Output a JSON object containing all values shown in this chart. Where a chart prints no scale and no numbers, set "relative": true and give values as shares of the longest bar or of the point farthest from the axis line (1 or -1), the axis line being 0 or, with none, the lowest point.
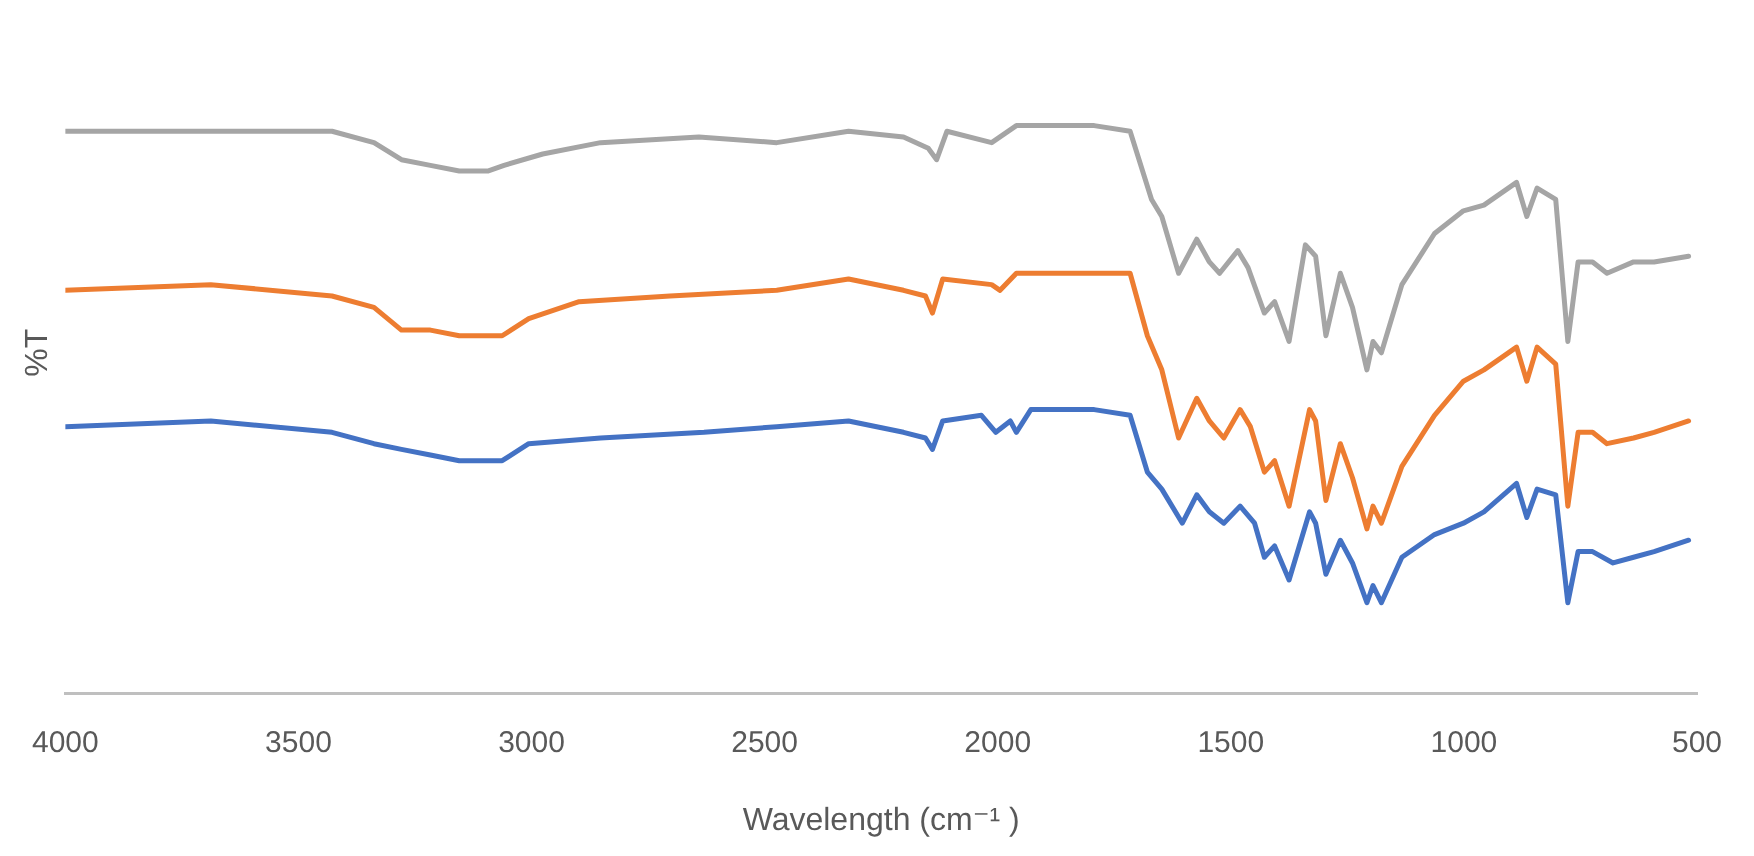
{
  "chart_data": {
    "type": "line",
    "xlabel": "Wavelength (cm⁻¹ )",
    "ylabel": "%T",
    "relative": true,
    "grid": false,
    "legend": false,
    "marker": "none",
    "line_style": "solid",
    "xlim": [
      4000,
      500
    ],
    "xticks": [
      4000,
      3500,
      3000,
      2500,
      2000,
      1500,
      1000,
      500
    ],
    "series": [
      {
        "color": "#a5a5a5",
        "x": [
          4000,
          3613,
          3428,
          3338,
          3279,
          3217,
          3155,
          3094,
          3059,
          2976,
          2852,
          2641,
          2474,
          2320,
          2202,
          2149,
          2131,
          2109,
          2013,
          1960,
          1793,
          1716,
          1670,
          1648,
          1612,
          1573,
          1546,
          1524,
          1485,
          1463,
          1428,
          1406,
          1375,
          1340,
          1318,
          1296,
          1265,
          1239,
          1208,
          1195,
          1177,
          1133,
          1063,
          1001,
          957,
          887,
          865,
          843,
          803,
          777,
          755,
          724,
          693,
          636,
          592,
          518
        ],
        "values": [
          0.99,
          0.99,
          0.99,
          0.97,
          0.94,
          0.93,
          0.92,
          0.92,
          0.93,
          0.95,
          0.97,
          0.98,
          0.97,
          0.99,
          0.98,
          0.96,
          0.94,
          0.99,
          0.97,
          1,
          1,
          0.99,
          0.87,
          0.84,
          0.74,
          0.8,
          0.76,
          0.74,
          0.78,
          0.75,
          0.67,
          0.69,
          0.62,
          0.79,
          0.77,
          0.63,
          0.74,
          0.68,
          0.57,
          0.62,
          0.6,
          0.72,
          0.81,
          0.85,
          0.86,
          0.9,
          0.84,
          0.89,
          0.87,
          0.62,
          0.76,
          0.76,
          0.74,
          0.76,
          0.76,
          0.77
        ]
      },
      {
        "color": "#ed7d31",
        "x": [
          4000,
          3688,
          3428,
          3338,
          3279,
          3217,
          3155,
          3094,
          3063,
          3006,
          2898,
          2703,
          2474,
          2320,
          2202,
          2155,
          2140,
          2118,
          2013,
          1995,
          1960,
          1793,
          1716,
          1679,
          1648,
          1612,
          1573,
          1546,
          1515,
          1480,
          1458,
          1428,
          1406,
          1375,
          1331,
          1318,
          1296,
          1265,
          1239,
          1208,
          1195,
          1177,
          1133,
          1063,
          1001,
          957,
          887,
          865,
          843,
          803,
          777,
          755,
          724,
          693,
          636,
          592,
          518
        ],
        "values": [
          0.71,
          0.72,
          0.7,
          0.68,
          0.64,
          0.64,
          0.63,
          0.63,
          0.63,
          0.66,
          0.69,
          0.7,
          0.71,
          0.73,
          0.71,
          0.7,
          0.67,
          0.73,
          0.72,
          0.71,
          0.74,
          0.74,
          0.74,
          0.63,
          0.57,
          0.45,
          0.52,
          0.48,
          0.45,
          0.5,
          0.47,
          0.39,
          0.41,
          0.33,
          0.5,
          0.48,
          0.34,
          0.44,
          0.38,
          0.29,
          0.33,
          0.3,
          0.4,
          0.49,
          0.55,
          0.57,
          0.61,
          0.55,
          0.61,
          0.58,
          0.33,
          0.46,
          0.46,
          0.44,
          0.45,
          0.46,
          0.48
        ]
      },
      {
        "color": "#4472c4",
        "x": [
          4000,
          3688,
          3428,
          3338,
          3279,
          3217,
          3155,
          3094,
          3063,
          3006,
          2852,
          2630,
          2474,
          2320,
          2202,
          2155,
          2140,
          2118,
          2035,
          2004,
          1973,
          1960,
          1929,
          1793,
          1716,
          1679,
          1648,
          1604,
          1573,
          1546,
          1515,
          1480,
          1449,
          1428,
          1406,
          1375,
          1331,
          1318,
          1296,
          1265,
          1239,
          1208,
          1195,
          1177,
          1133,
          1063,
          1001,
          957,
          887,
          865,
          843,
          803,
          777,
          755,
          724,
          680,
          636,
          592,
          518
        ],
        "values": [
          0.47,
          0.48,
          0.46,
          0.44,
          0.43,
          0.42,
          0.41,
          0.41,
          0.41,
          0.44,
          0.45,
          0.46,
          0.47,
          0.48,
          0.46,
          0.45,
          0.43,
          0.48,
          0.49,
          0.46,
          0.48,
          0.46,
          0.5,
          0.5,
          0.49,
          0.39,
          0.36,
          0.3,
          0.35,
          0.32,
          0.3,
          0.33,
          0.3,
          0.24,
          0.26,
          0.2,
          0.32,
          0.3,
          0.21,
          0.27,
          0.23,
          0.16,
          0.19,
          0.16,
          0.24,
          0.28,
          0.3,
          0.32,
          0.37,
          0.31,
          0.36,
          0.35,
          0.16,
          0.25,
          0.25,
          0.23,
          0.24,
          0.25,
          0.27
        ]
      }
    ]
  }
}
